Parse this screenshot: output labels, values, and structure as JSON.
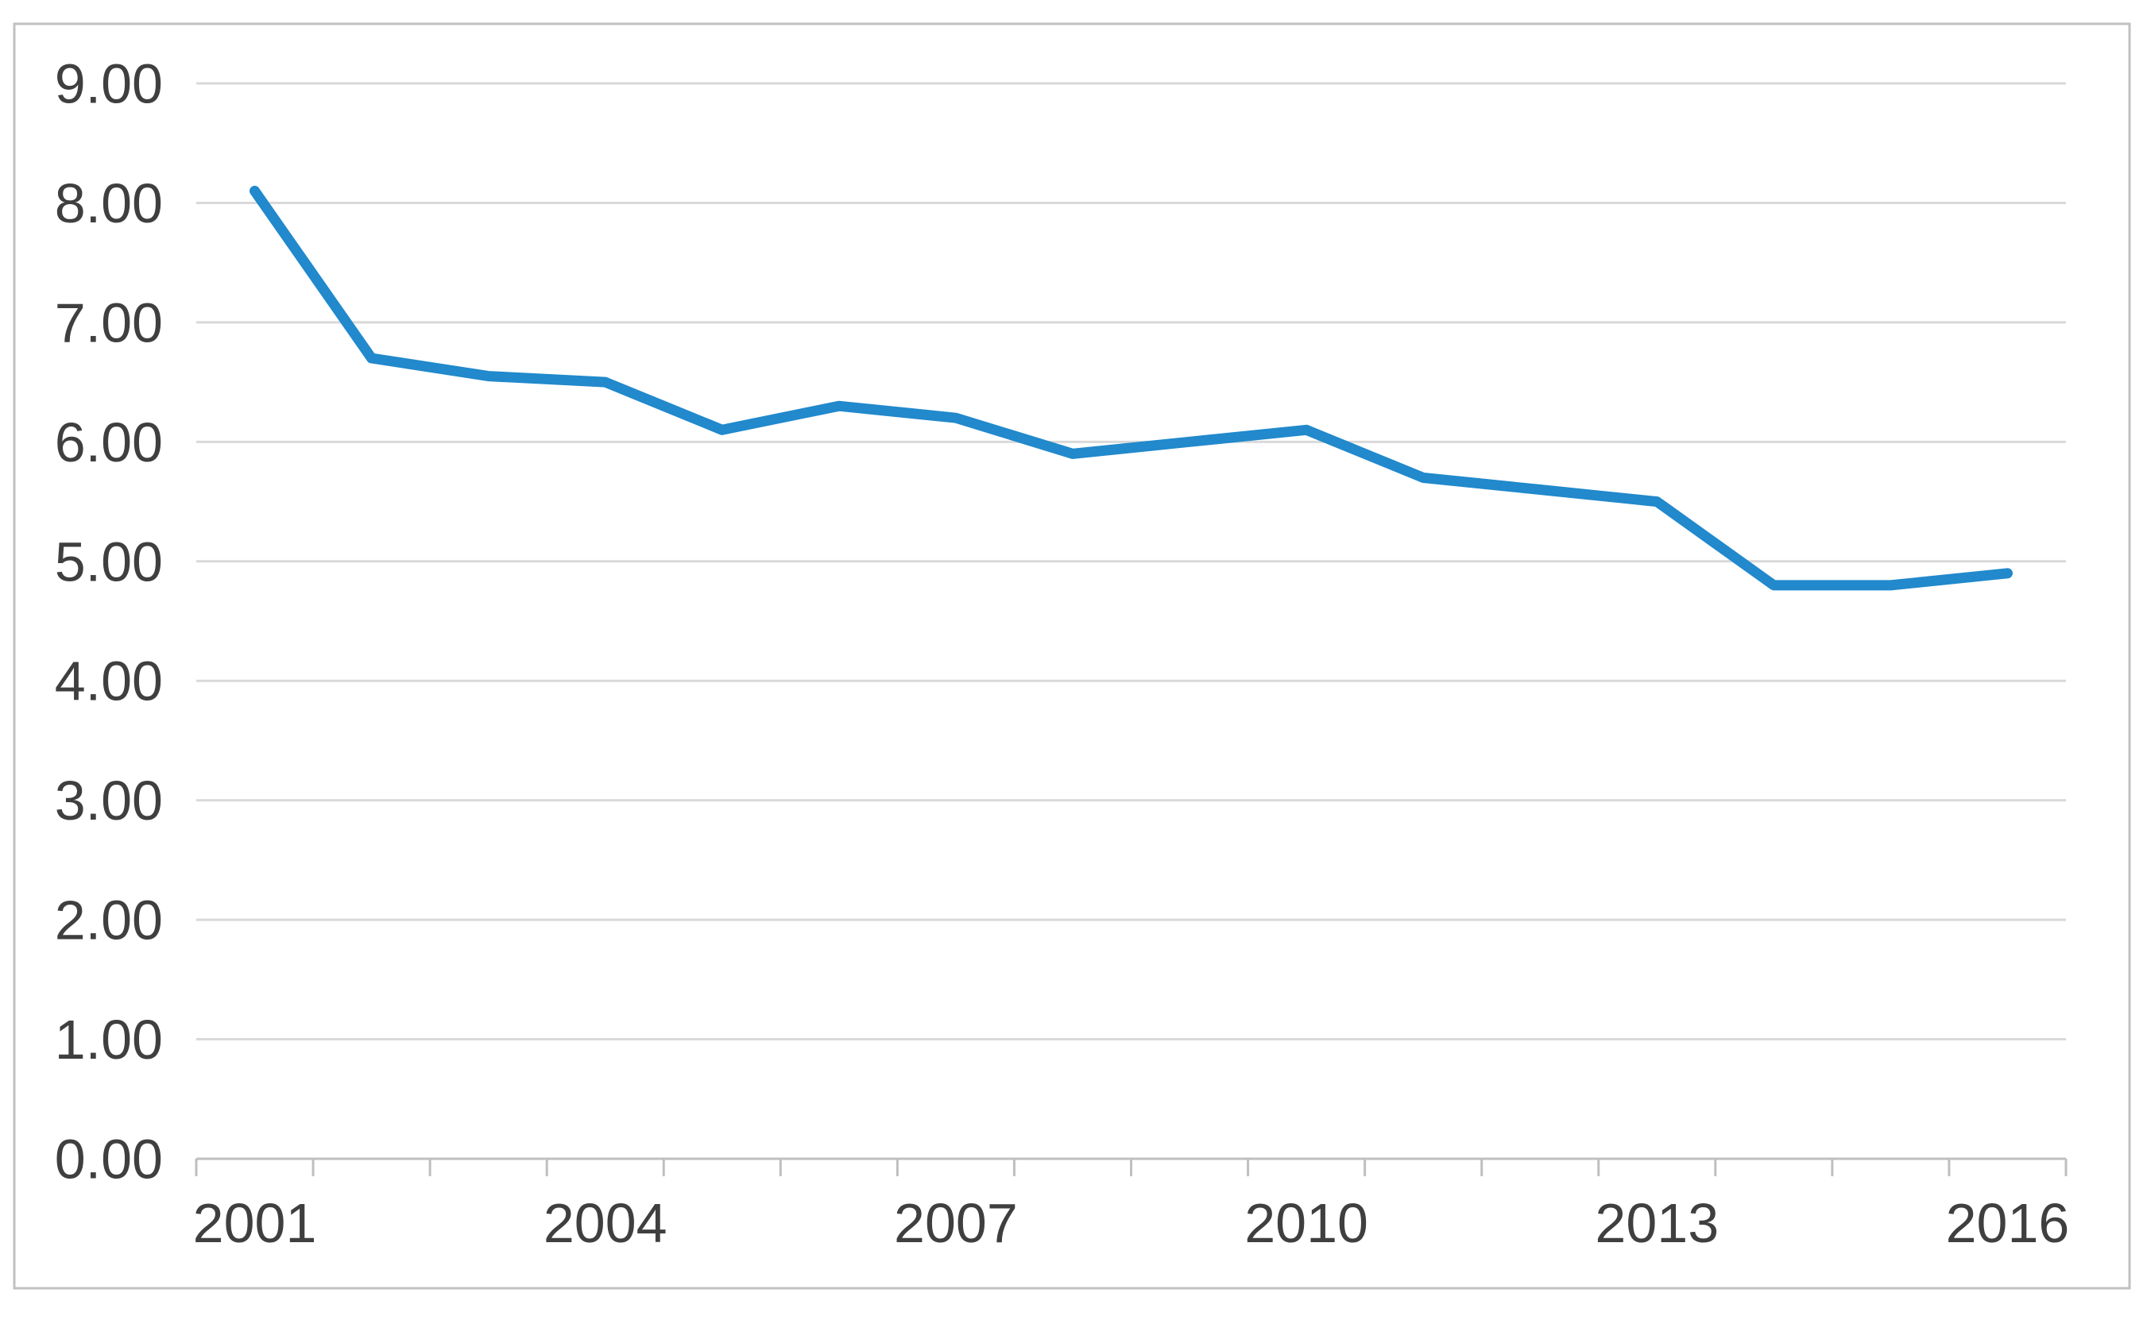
{
  "chart_data": {
    "type": "line",
    "title": "",
    "xlabel": "",
    "ylabel": "",
    "categories": [
      "2001",
      "2002",
      "2003",
      "2004",
      "2005",
      "2006",
      "2007",
      "2008",
      "2009",
      "2010",
      "2011",
      "2012",
      "2013",
      "2014",
      "2015",
      "2016"
    ],
    "values": [
      8.1,
      6.7,
      6.55,
      6.5,
      6.1,
      6.3,
      6.2,
      5.9,
      6.0,
      6.1,
      5.7,
      5.6,
      5.5,
      4.8,
      4.8,
      4.9
    ],
    "series_name": "",
    "ylim": [
      0,
      9
    ],
    "ytick_step": 1,
    "ytick_labels": [
      "0.00",
      "1.00",
      "2.00",
      "3.00",
      "4.00",
      "5.00",
      "6.00",
      "7.00",
      "8.00",
      "9.00"
    ],
    "xtick_labels_shown": [
      "2001",
      "2004",
      "2007",
      "2010",
      "2013",
      "2016"
    ],
    "xtick_label_every": 3,
    "grid": "horizontal",
    "legend": "none",
    "colors": {
      "line": "#2189cc",
      "gridline": "#d9d9d9",
      "axis_line": "#bfbfbf",
      "tick_mark": "#bfbfbf",
      "tick_label": "#3f3f3f",
      "frame_border": "#c1c1c1",
      "background": "#ffffff"
    }
  }
}
